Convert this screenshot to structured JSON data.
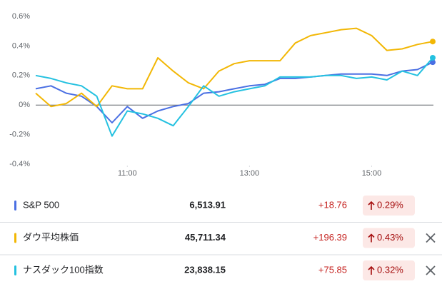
{
  "chart_data": {
    "type": "line",
    "x": [
      9.5,
      9.75,
      10,
      10.25,
      10.5,
      10.75,
      11,
      11.25,
      11.5,
      11.75,
      12,
      12.25,
      12.5,
      12.75,
      13,
      13.25,
      13.5,
      13.75,
      14,
      14.25,
      14.5,
      14.75,
      15,
      15.25,
      15.5,
      15.75,
      16
    ],
    "series": [
      {
        "name": "S&P 500",
        "color": "#4a6fe3",
        "values": [
          0.11,
          0.13,
          0.08,
          0.06,
          -0.01,
          -0.12,
          -0.01,
          -0.09,
          -0.04,
          -0.01,
          0.01,
          0.08,
          0.09,
          0.11,
          0.13,
          0.14,
          0.18,
          0.18,
          0.19,
          0.2,
          0.21,
          0.21,
          0.21,
          0.2,
          0.23,
          0.24,
          0.29
        ]
      },
      {
        "name": "ダウ平均株価",
        "color": "#f2b705",
        "values": [
          0.08,
          -0.01,
          0.01,
          0.08,
          -0.01,
          0.13,
          0.11,
          0.11,
          0.32,
          0.23,
          0.15,
          0.11,
          0.23,
          0.28,
          0.3,
          0.3,
          0.3,
          0.42,
          0.47,
          0.49,
          0.51,
          0.52,
          0.47,
          0.37,
          0.38,
          0.41,
          0.43
        ]
      },
      {
        "name": "ナスダック100指数",
        "color": "#24c1e0",
        "values": [
          0.2,
          0.18,
          0.15,
          0.13,
          0.06,
          -0.21,
          -0.04,
          -0.06,
          -0.09,
          -0.14,
          -0.01,
          0.13,
          0.06,
          0.09,
          0.11,
          0.13,
          0.19,
          0.19,
          0.19,
          0.2,
          0.2,
          0.18,
          0.19,
          0.17,
          0.23,
          0.2,
          0.32
        ]
      }
    ],
    "xlim": [
      9.5,
      16
    ],
    "xticks": [
      {
        "value": 11,
        "label": "11:00"
      },
      {
        "value": 13,
        "label": "13:00"
      },
      {
        "value": 15,
        "label": "15:00"
      }
    ],
    "ylim": [
      -0.4,
      0.6
    ],
    "yticks": [
      {
        "value": -0.4,
        "label": "-0.4%"
      },
      {
        "value": -0.2,
        "label": "-0.2%"
      },
      {
        "value": 0,
        "label": "0%"
      },
      {
        "value": 0.2,
        "label": "0.2%"
      },
      {
        "value": 0.4,
        "label": "0.4%"
      },
      {
        "value": 0.6,
        "label": "0.6%"
      }
    ]
  },
  "table": {
    "rows": [
      {
        "name": "S&P 500",
        "price": "6,513.91",
        "change": "+18.76",
        "percent": "0.29%"
      },
      {
        "name": "ダウ平均株価",
        "price": "45,711.34",
        "change": "+196.39",
        "percent": "0.43%"
      },
      {
        "name": "ナスダック100指数",
        "price": "23,838.15",
        "change": "+75.85",
        "percent": "0.32%"
      }
    ]
  }
}
